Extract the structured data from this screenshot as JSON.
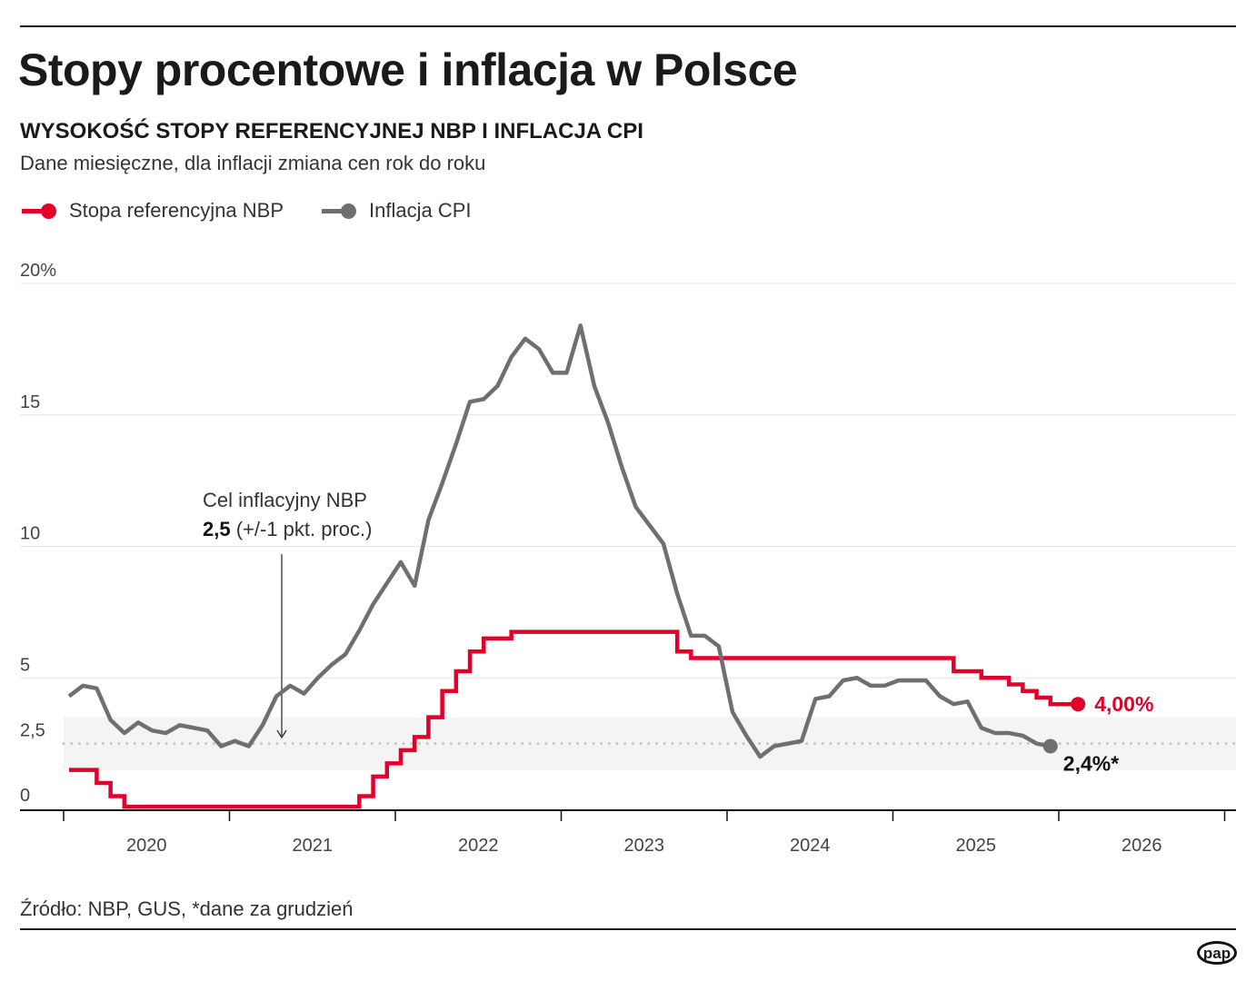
{
  "header": {
    "title": "Stopy procentowe i inflacja w Polsce",
    "subtitle": "WYSOKOŚĆ STOPY REFERENCYJNEJ NBP I INFLACJA CPI",
    "description": "Dane miesięczne, dla inflacji zmiana cen rok do roku"
  },
  "footer": {
    "source": "Źródło: NBP, GUS, *dane za grudzień",
    "logo": "pap"
  },
  "colors": {
    "rate": "#e1002a",
    "cpi": "#6f6f6f",
    "band": "#f4f4f4",
    "grid": "#e6e6e6"
  },
  "chart_data": {
    "type": "line",
    "title": "Stopy procentowe i inflacja w Polsce",
    "ylim": [
      0,
      20
    ],
    "y_ticks": [
      {
        "value": 20,
        "label": "20%"
      },
      {
        "value": 15,
        "label": "15"
      },
      {
        "value": 10,
        "label": "10"
      },
      {
        "value": 5,
        "label": "5"
      },
      {
        "value": 2.5,
        "label": "2,5"
      },
      {
        "value": 0,
        "label": "0"
      }
    ],
    "x_tick_labels": [
      "2020",
      "2021",
      "2022",
      "2023",
      "2024",
      "2025",
      "2026"
    ],
    "x_start": "2020-01",
    "grid": true,
    "legend_placement": "top-left",
    "target_band": [
      1.5,
      3.5
    ],
    "target_line": 2.5,
    "annotation": {
      "line1": "Cel inflacyjny NBP",
      "bold": "2,5",
      "rest": " (+/-1 pkt. proc.)"
    },
    "series": [
      {
        "name": "Stopa referencyjna NBP",
        "style": "step",
        "end_label": "4,00%",
        "values": [
          1.5,
          1.5,
          1.0,
          0.5,
          0.1,
          0.1,
          0.1,
          0.1,
          0.1,
          0.1,
          0.1,
          0.1,
          0.1,
          0.1,
          0.1,
          0.1,
          0.1,
          0.1,
          0.1,
          0.1,
          0.1,
          0.5,
          1.25,
          1.75,
          2.25,
          2.75,
          3.5,
          4.5,
          5.25,
          6.0,
          6.5,
          6.5,
          6.75,
          6.75,
          6.75,
          6.75,
          6.75,
          6.75,
          6.75,
          6.75,
          6.75,
          6.75,
          6.75,
          6.75,
          6.0,
          5.75,
          5.75,
          5.75,
          5.75,
          5.75,
          5.75,
          5.75,
          5.75,
          5.75,
          5.75,
          5.75,
          5.75,
          5.75,
          5.75,
          5.75,
          5.75,
          5.75,
          5.75,
          5.75,
          5.25,
          5.25,
          5.0,
          5.0,
          4.75,
          4.5,
          4.25,
          4.0,
          4.0,
          4.0
        ]
      },
      {
        "name": "Inflacja CPI",
        "style": "line",
        "end_label": "2,4%*",
        "values": [
          4.3,
          4.7,
          4.6,
          3.4,
          2.9,
          3.3,
          3.0,
          2.9,
          3.2,
          3.1,
          3.0,
          2.4,
          2.6,
          2.4,
          3.2,
          4.3,
          4.7,
          4.4,
          5.0,
          5.5,
          5.9,
          6.8,
          7.8,
          8.6,
          9.4,
          8.5,
          11.0,
          12.4,
          13.9,
          15.5,
          15.6,
          16.1,
          17.2,
          17.9,
          17.5,
          16.6,
          16.6,
          18.4,
          16.1,
          14.7,
          13.0,
          11.5,
          10.8,
          10.1,
          8.2,
          6.6,
          6.6,
          6.2,
          3.7,
          2.8,
          2.0,
          2.4,
          2.5,
          2.6,
          4.2,
          4.3,
          4.9,
          5.0,
          4.7,
          4.7,
          4.9,
          4.9,
          4.9,
          4.3,
          4.0,
          4.1,
          3.1,
          2.9,
          2.9,
          2.8,
          2.5,
          2.4
        ]
      }
    ]
  }
}
